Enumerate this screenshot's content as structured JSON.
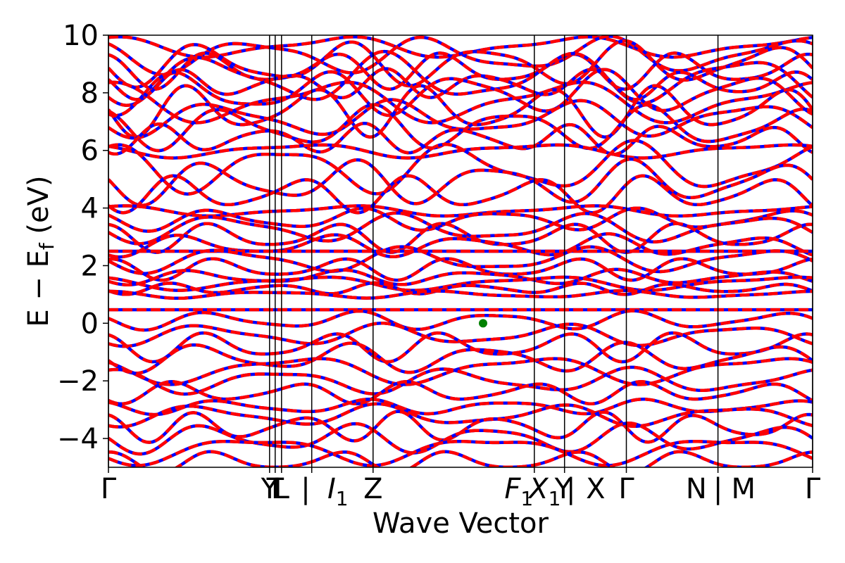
{
  "chart_data": {
    "type": "line",
    "title": "",
    "xlabel": "Wave Vector",
    "ylabel": "E − E",
    "ylabel_subscript": "f",
    "ylabel_unit": " (eV)",
    "ylim": [
      -5,
      10
    ],
    "yticks": [
      10,
      8,
      6,
      4,
      2,
      0,
      -2,
      -4
    ],
    "ytick_labels": [
      "10",
      "8",
      "6",
      "4",
      "2",
      "0",
      "−2",
      "−4"
    ],
    "xlim": [
      0,
      1
    ],
    "kpath": [
      {
        "label": "Γ",
        "x": 0.0
      },
      {
        "label": "Y",
        "x": 0.2288
      },
      {
        "label": "T",
        "x": 0.2368
      },
      {
        "label": "L",
        "x": 0.2458
      },
      {
        "label": "I",
        "x": 0.2887,
        "label_sub": "1"
      },
      {
        "label": "Z",
        "x": 0.3758
      },
      {
        "label": "F",
        "x": 0.6048,
        "label_sub": "1"
      },
      {
        "label": "X",
        "x": 0.6477,
        "label_sub": "1"
      },
      {
        "label": "X",
        "x": 0.7355
      },
      {
        "label": "M",
        "x": 0.8656
      },
      {
        "label": "Γ",
        "x": 1.0
      }
    ],
    "xtick_labels": [
      {
        "text": "Γ",
        "x": 0.0
      },
      {
        "text": "Y",
        "x": 0.2288
      },
      {
        "text": "T",
        "x": 0.2368
      },
      {
        "text": "L",
        "x": 0.2458
      },
      {
        "text": "|",
        "x": 0.28
      },
      {
        "text": "I",
        "sub": "1",
        "x": 0.3258,
        "italic": true
      },
      {
        "text": "Z",
        "x": 0.3758
      },
      {
        "text": "F",
        "sub": "1",
        "x": 0.5828,
        "italic": true
      },
      {
        "text": "X",
        "sub": "1",
        "x": 0.6198,
        "italic": true
      },
      {
        "text": "Y",
        "x": 0.6458
      },
      {
        "text": "|",
        "x": 0.6568
      },
      {
        "text": "X",
        "x": 0.6918
      },
      {
        "text": "Γ",
        "x": 0.7355
      },
      {
        "text": "N",
        "x": 0.8348
      },
      {
        "text": "|",
        "x": 0.8656
      },
      {
        "text": "M",
        "x": 0.9018
      },
      {
        "text": "Γ",
        "x": 1.0
      }
    ],
    "series": [
      {
        "style": "solid",
        "color": "#0000ff"
      },
      {
        "style": "dashed",
        "color": "#ff0000"
      }
    ],
    "fermi_marker": {
      "x": 0.532,
      "y": 0.0,
      "color": "#008000"
    },
    "bands": [
      {
        "center": 9.6,
        "amp": 0.3,
        "freq": 3,
        "phase": 0.2
      },
      {
        "center": 9.3,
        "amp": 0.5,
        "freq": 4,
        "phase": 1.1
      },
      {
        "center": 9.0,
        "amp": 0.6,
        "freq": 5,
        "phase": 2.0
      },
      {
        "center": 8.8,
        "amp": 0.5,
        "freq": 6,
        "phase": 0.7
      },
      {
        "center": 8.5,
        "amp": 0.7,
        "freq": 4,
        "phase": 2.6
      },
      {
        "center": 8.3,
        "amp": 0.4,
        "freq": 7,
        "phase": 1.5
      },
      {
        "center": 8.0,
        "amp": 0.6,
        "freq": 5,
        "phase": 3.0
      },
      {
        "center": 7.7,
        "amp": 0.6,
        "freq": 3,
        "phase": 0.4
      },
      {
        "center": 7.4,
        "amp": 0.7,
        "freq": 6,
        "phase": 1.8
      },
      {
        "center": 7.1,
        "amp": 0.5,
        "freq": 4,
        "phase": 2.3
      },
      {
        "center": 6.8,
        "amp": 0.6,
        "freq": 5,
        "phase": 0.9
      },
      {
        "center": 6.4,
        "amp": 0.4,
        "freq": 7,
        "phase": 2.9
      },
      {
        "center": 6.0,
        "amp": 0.2,
        "freq": 3,
        "phase": 1.2
      },
      {
        "center": 5.4,
        "amp": 0.7,
        "freq": 4,
        "phase": 0.1
      },
      {
        "center": 4.9,
        "amp": 0.6,
        "freq": 5,
        "phase": 1.7
      },
      {
        "center": 4.5,
        "amp": 0.5,
        "freq": 6,
        "phase": 2.5
      },
      {
        "center": 3.9,
        "amp": 0.15,
        "freq": 3,
        "phase": 0.0
      },
      {
        "center": 3.6,
        "amp": 0.3,
        "freq": 5,
        "phase": 1.4
      },
      {
        "center": 3.3,
        "amp": 0.4,
        "freq": 4,
        "phase": 2.1
      },
      {
        "center": 3.0,
        "amp": 0.4,
        "freq": 6,
        "phase": 0.6
      },
      {
        "center": 2.7,
        "amp": 0.3,
        "freq": 5,
        "phase": 2.8
      },
      {
        "center": 2.5,
        "amp": 0.0,
        "freq": 1,
        "phase": 0.0
      },
      {
        "center": 2.2,
        "amp": 0.35,
        "freq": 4,
        "phase": 1.9
      },
      {
        "center": 1.9,
        "amp": 0.3,
        "freq": 6,
        "phase": 0.3
      },
      {
        "center": 1.6,
        "amp": 0.2,
        "freq": 5,
        "phase": 2.4
      },
      {
        "center": 1.4,
        "amp": 0.2,
        "freq": 3,
        "phase": 1.0
      },
      {
        "center": 1.2,
        "amp": 0.15,
        "freq": 7,
        "phase": 2.2
      },
      {
        "center": 1.0,
        "amp": 0.1,
        "freq": 4,
        "phase": 0.5
      },
      {
        "center": 0.47,
        "amp": 0.0,
        "freq": 1,
        "phase": 0.0
      },
      {
        "center": 0.1,
        "amp": 0.25,
        "freq": 5,
        "phase": 1.6
      },
      {
        "center": -0.4,
        "amp": 0.3,
        "freq": 4,
        "phase": 2.7
      },
      {
        "center": -0.8,
        "amp": 0.4,
        "freq": 6,
        "phase": 0.8
      },
      {
        "center": -1.2,
        "amp": 0.4,
        "freq": 5,
        "phase": 2.0
      },
      {
        "center": -1.6,
        "amp": 0.4,
        "freq": 3,
        "phase": 1.3
      },
      {
        "center": -2.0,
        "amp": 0.35,
        "freq": 4,
        "phase": 0.2
      },
      {
        "center": -2.4,
        "amp": 0.3,
        "freq": 6,
        "phase": 2.6
      },
      {
        "center": -2.9,
        "amp": 0.2,
        "freq": 5,
        "phase": 1.1
      },
      {
        "center": -3.2,
        "amp": 0.3,
        "freq": 4,
        "phase": 2.9
      },
      {
        "center": -3.6,
        "amp": 0.4,
        "freq": 7,
        "phase": 0.7
      },
      {
        "center": -4.0,
        "amp": 0.4,
        "freq": 5,
        "phase": 1.8
      },
      {
        "center": -4.4,
        "amp": 0.4,
        "freq": 3,
        "phase": 2.4
      },
      {
        "center": -4.8,
        "amp": 0.3,
        "freq": 6,
        "phase": 0.4
      }
    ]
  }
}
